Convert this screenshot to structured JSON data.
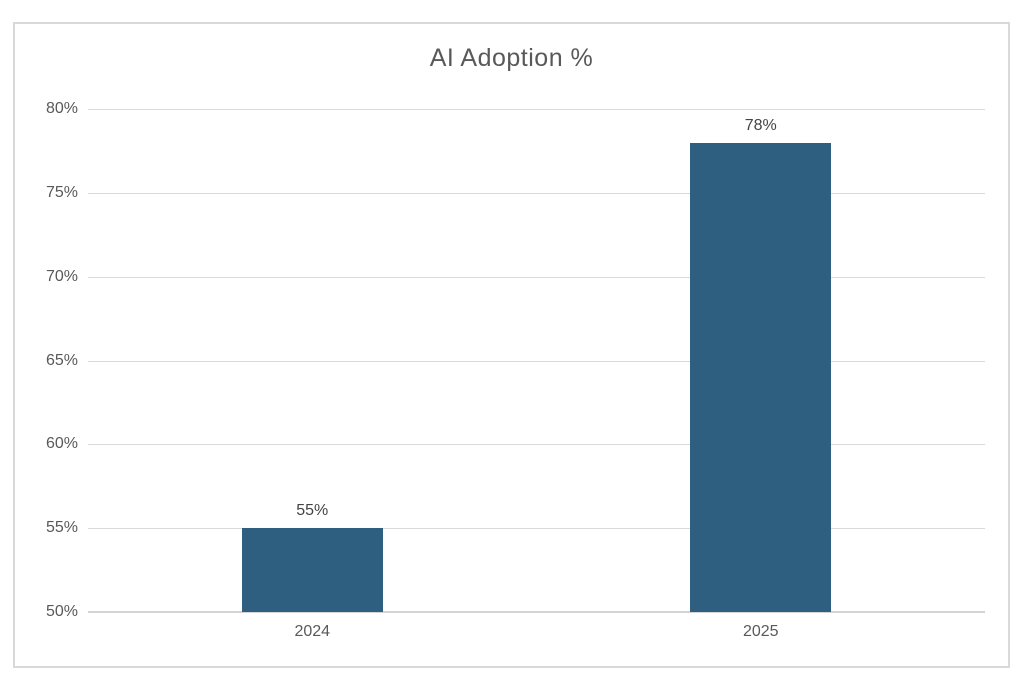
{
  "chart_data": {
    "type": "bar",
    "title": "AI Adoption %",
    "categories": [
      "2024",
      "2025"
    ],
    "values": [
      55,
      78
    ],
    "data_labels": [
      "55%",
      "78%"
    ],
    "x_tick_labels": [
      "2024",
      "2025"
    ],
    "y_tick_labels": [
      "50%",
      "55%",
      "60%",
      "65%",
      "70%",
      "75%",
      "80%"
    ],
    "ylim": [
      50,
      80
    ],
    "ytick_step": 5,
    "grid": true,
    "legend": false,
    "xlabel": "",
    "ylabel": "",
    "colors": {
      "bar": "#2E5F80",
      "gridline": "#D9D9D9",
      "axis_line": "#D4D4D4",
      "frame_border": "#D9D9D9",
      "title_text": "#595959",
      "tick_text": "#595959",
      "data_label_text": "#444444",
      "background": "#FFFFFF"
    }
  }
}
